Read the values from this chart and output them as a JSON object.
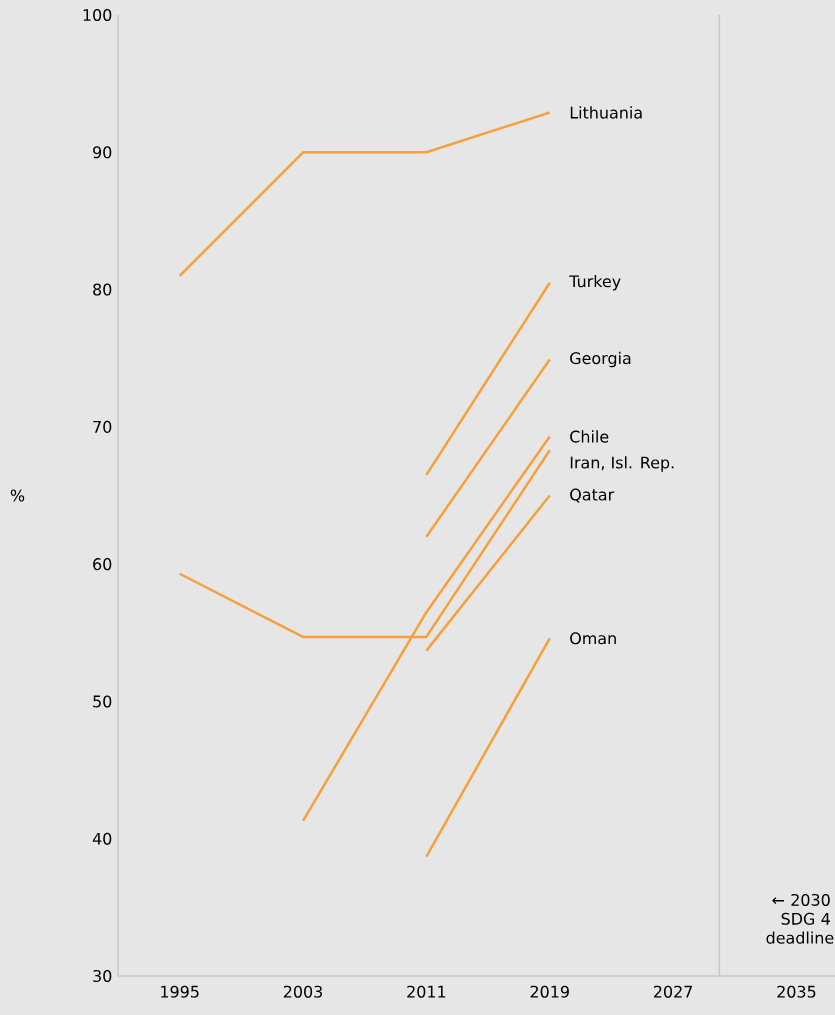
{
  "chart_data": {
    "type": "line",
    "ylabel": "%",
    "x": [
      1995,
      2003,
      2011,
      2019
    ],
    "series": [
      {
        "name": "Lithuania",
        "color": "#f7a03a",
        "values": [
          81,
          90,
          90,
          92.9
        ]
      },
      {
        "name": "Turkey",
        "color": "#f7a03a",
        "values": [
          null,
          null,
          66.5,
          80.5
        ]
      },
      {
        "name": "Georgia",
        "color": "#f7a03a",
        "values": [
          null,
          null,
          62,
          74.9
        ]
      },
      {
        "name": "Chile",
        "color": "#f7a03a",
        "values": [
          null,
          41.3,
          56.5,
          69.3
        ]
      },
      {
        "name": "Iran, Isl. Rep.",
        "color": "#f7a03a",
        "values": [
          59.3,
          54.7,
          54.7,
          68.3
        ]
      },
      {
        "name": "Qatar",
        "color": "#f7a03a",
        "values": [
          null,
          null,
          53.7,
          65
        ]
      },
      {
        "name": "Oman",
        "color": "#f7a03a",
        "values": [
          null,
          null,
          38.7,
          54.6
        ]
      }
    ],
    "xlim": [
      1991,
      2037.5
    ],
    "xticks": [
      1995,
      2003,
      2011,
      2019,
      2027,
      2035
    ],
    "ylim": [
      30,
      100
    ],
    "yticks": [
      30,
      40,
      50,
      60,
      70,
      80,
      90,
      100
    ],
    "ref_lines": [
      {
        "axis": "x",
        "value": 2030,
        "label": "← 2030 SDG 4 deadline",
        "color": "#c8c8c8"
      }
    ],
    "marker": "none",
    "line_style": "solid",
    "grid": false
  }
}
